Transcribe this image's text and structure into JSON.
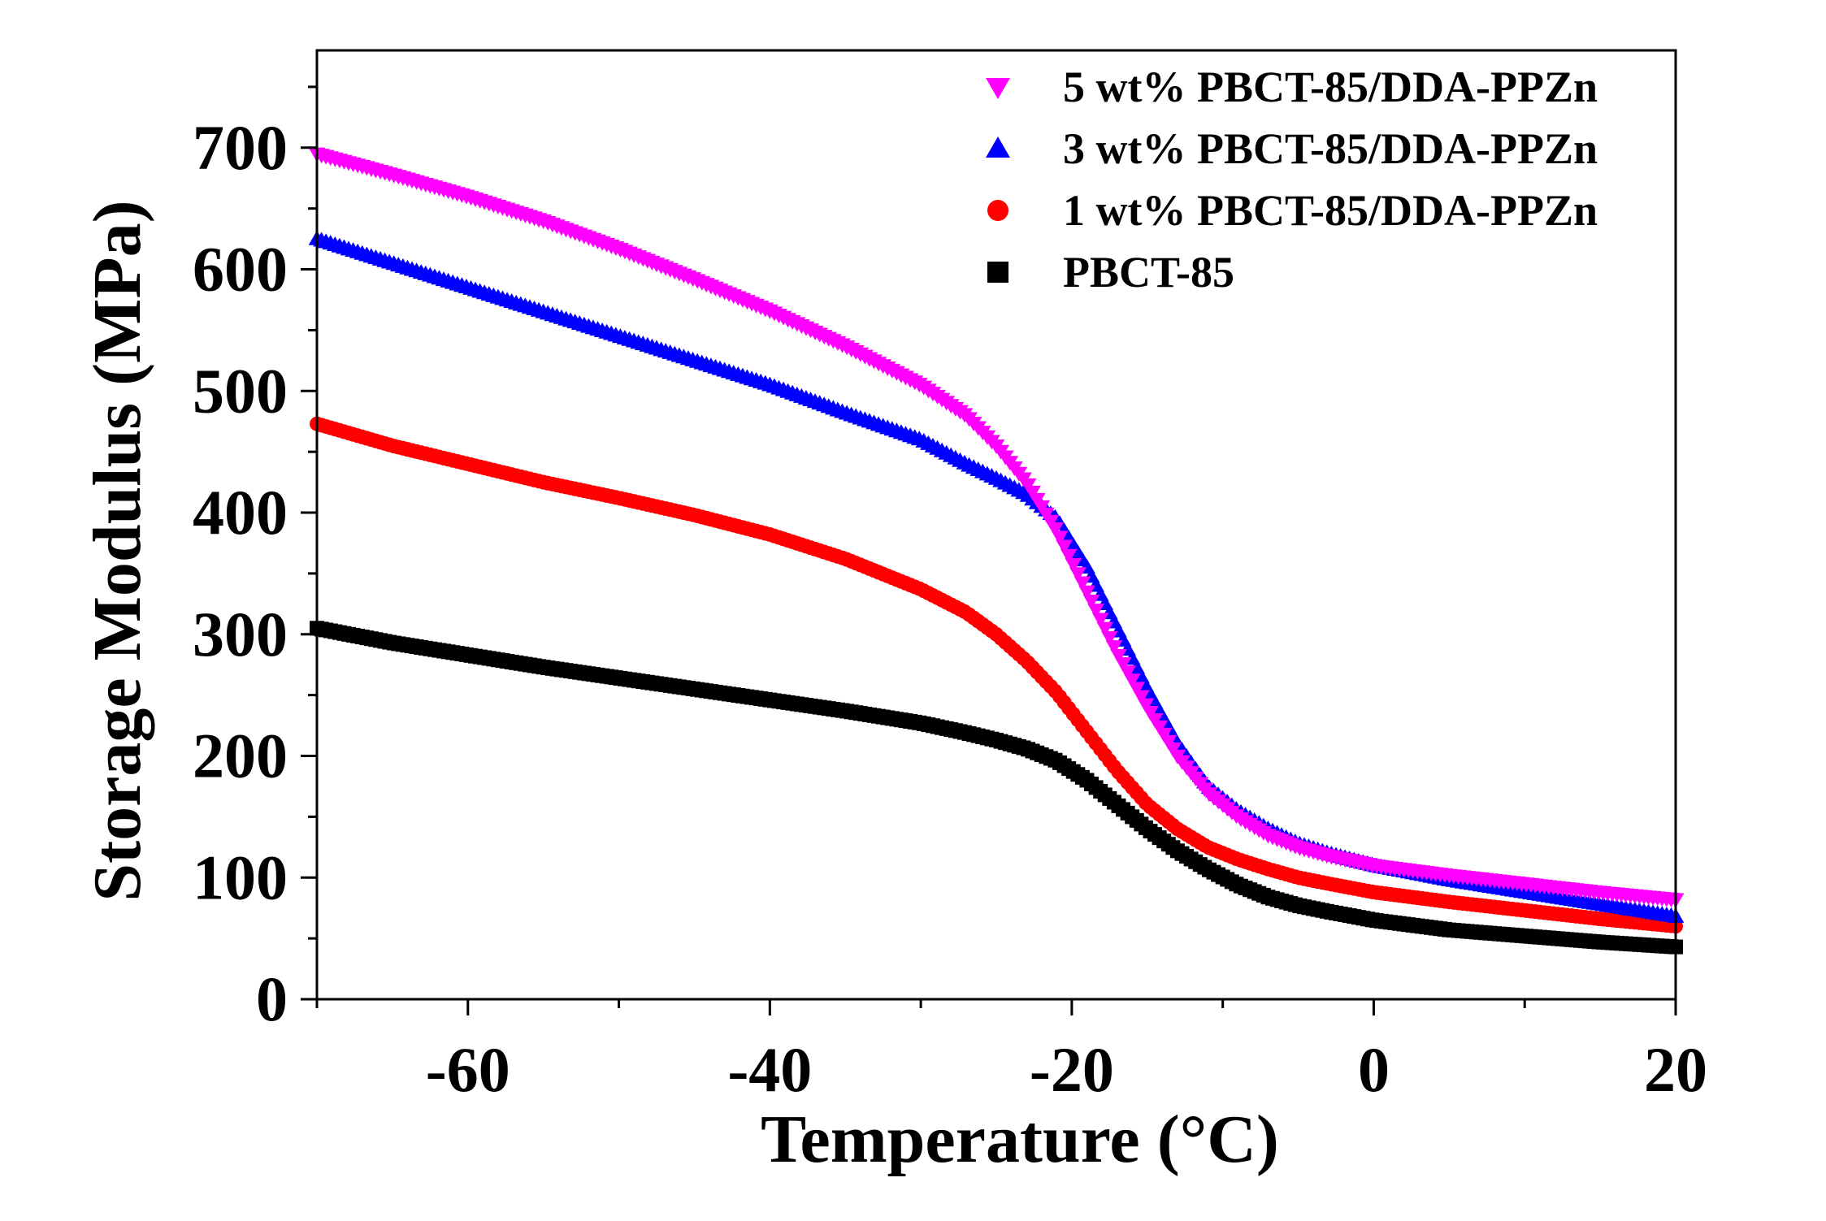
{
  "chart_data": {
    "type": "scatter",
    "title": "",
    "xlabel": "Temperature (°C)",
    "ylabel": "Storage Modulus (MPa)",
    "xlim": [
      -70,
      20
    ],
    "ylim": [
      0,
      780
    ],
    "xticks": [
      -60,
      -40,
      -20,
      0,
      20
    ],
    "xtick_labels": [
      "-60",
      "-40",
      "-20",
      "0",
      "20"
    ],
    "yticks": [
      0,
      100,
      200,
      300,
      400,
      500,
      600,
      700
    ],
    "ytick_labels": [
      "0",
      "100",
      "200",
      "300",
      "400",
      "500",
      "600",
      "700"
    ],
    "grid": false,
    "legend_position": "top-right",
    "series": [
      {
        "name": "5 wt% PBCT-85/DDA-PPZn",
        "marker": "triangle-down",
        "color": "#ff00ff",
        "x": [
          -70,
          -65,
          -60,
          -55,
          -50,
          -45,
          -40,
          -35,
          -30,
          -27,
          -25,
          -23,
          -21,
          -19,
          -17,
          -15,
          -13,
          -11,
          -9,
          -7,
          -5,
          -3,
          0,
          5,
          10,
          15,
          20
        ],
        "y": [
          695,
          678,
          660,
          640,
          617,
          592,
          566,
          537,
          505,
          480,
          455,
          425,
          385,
          335,
          285,
          240,
          200,
          170,
          150,
          135,
          125,
          118,
          110,
          102,
          95,
          88,
          82
        ]
      },
      {
        "name": "3 wt% PBCT-85/DDA-PPZn",
        "marker": "triangle-up",
        "color": "#0000ff",
        "x": [
          -70,
          -65,
          -60,
          -55,
          -50,
          -45,
          -40,
          -35,
          -30,
          -27,
          -25,
          -23,
          -21,
          -19,
          -17,
          -15,
          -13,
          -11,
          -9,
          -7,
          -5,
          -3,
          0,
          5,
          10,
          15,
          20
        ],
        "y": [
          625,
          605,
          585,
          565,
          545,
          525,
          505,
          482,
          460,
          440,
          428,
          415,
          395,
          355,
          305,
          255,
          210,
          175,
          155,
          140,
          128,
          120,
          110,
          98,
          88,
          78,
          68
        ]
      },
      {
        "name": "1 wt% PBCT-85/DDA-PPZn",
        "marker": "circle",
        "color": "#ff0000",
        "x": [
          -70,
          -65,
          -60,
          -55,
          -50,
          -45,
          -40,
          -35,
          -30,
          -27,
          -25,
          -23,
          -21,
          -19,
          -17,
          -15,
          -13,
          -11,
          -9,
          -7,
          -5,
          -3,
          0,
          5,
          10,
          15,
          20
        ],
        "y": [
          473,
          455,
          440,
          425,
          412,
          398,
          382,
          362,
          337,
          318,
          300,
          278,
          252,
          220,
          188,
          160,
          140,
          125,
          115,
          107,
          100,
          95,
          88,
          80,
          73,
          66,
          60
        ]
      },
      {
        "name": "PBCT-85",
        "marker": "square",
        "color": "#000000",
        "x": [
          -70,
          -65,
          -60,
          -55,
          -50,
          -45,
          -40,
          -35,
          -30,
          -27,
          -25,
          -23,
          -21,
          -19,
          -17,
          -15,
          -13,
          -11,
          -9,
          -7,
          -5,
          -3,
          0,
          5,
          10,
          15,
          20
        ],
        "y": [
          305,
          293,
          283,
          273,
          264,
          255,
          246,
          237,
          227,
          219,
          213,
          206,
          196,
          180,
          160,
          140,
          122,
          107,
          94,
          84,
          77,
          72,
          65,
          57,
          52,
          47,
          43
        ]
      }
    ]
  }
}
